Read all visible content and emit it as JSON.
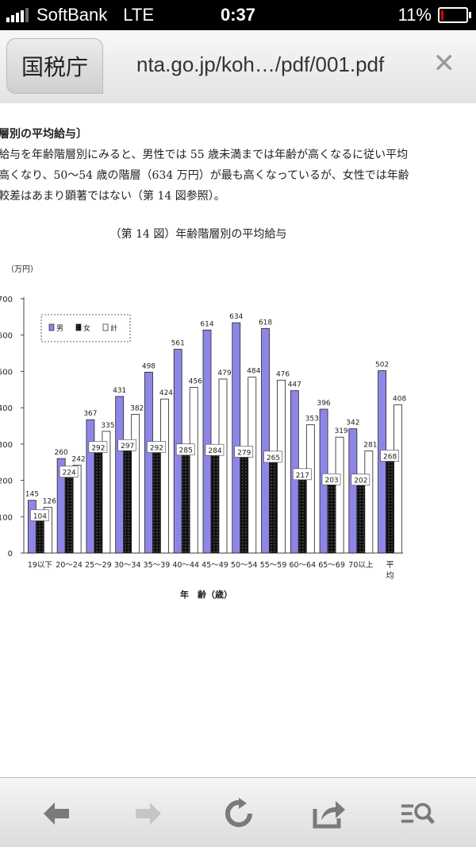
{
  "status_bar": {
    "carrier": "SoftBank",
    "network": "LTE",
    "time": "0:37",
    "battery": "11%",
    "battery_level": 0.11
  },
  "browser": {
    "site_title": "国税庁",
    "url": "nta.go.jp/koh…/pdf/001.pdf",
    "close_icon": "close-icon"
  },
  "document": {
    "heading": "層別の平均給与〕",
    "paragraph": [
      "給与を年齢階層別にみると、男性では 55 歳未満までは年齢が高くなるに従い平均",
      "高くなり、50〜54 歳の階層（634 万円）が最も高くなっているが、女性では年齢",
      "較差はあまり顕著ではない（第 14 図参照）。"
    ]
  },
  "chart_data": {
    "type": "bar",
    "title": "（第 14 図）年齢階層別の平均給与",
    "unit": "（万円）",
    "xlabel": "年　齢（歳）",
    "ylabel": "",
    "ylim": [
      0,
      700
    ],
    "yticks": [
      "0",
      "100",
      "200",
      "300",
      "400",
      "500",
      "600",
      "700"
    ],
    "ytick_labels_visible": [
      "0",
      "100",
      "200",
      "300",
      "400",
      "500",
      "600",
      "700"
    ],
    "legend_position": "top-left",
    "grid": false,
    "categories": [
      "19以下",
      "20〜24",
      "25〜29",
      "30〜34",
      "35〜39",
      "40〜44",
      "45〜49",
      "50〜54",
      "55〜59",
      "60〜64",
      "65〜69",
      "70以上",
      "平均"
    ],
    "series": [
      {
        "name": "男",
        "color": "#8e86e6",
        "values": [
          145,
          260,
          367,
          431,
          498,
          561,
          614,
          634,
          618,
          447,
          396,
          342,
          502
        ]
      },
      {
        "name": "女",
        "color": "#111111",
        "values": [
          104,
          224,
          292,
          297,
          292,
          285,
          284,
          279,
          265,
          217,
          203,
          202,
          268
        ]
      },
      {
        "name": "計",
        "color": "#ffffff",
        "values": [
          126,
          242,
          335,
          382,
          424,
          456,
          479,
          484,
          476,
          353,
          319,
          281,
          408
        ]
      }
    ]
  },
  "toolbar": {
    "back": "back-arrow-icon",
    "forward": "forward-arrow-icon",
    "reload": "reload-icon",
    "share": "share-icon",
    "reader": "reader-search-icon"
  }
}
